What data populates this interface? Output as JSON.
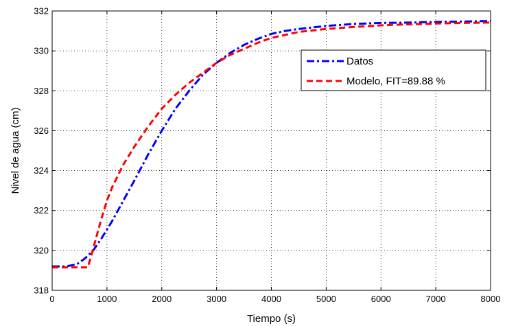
{
  "chart_data": {
    "type": "line",
    "xlabel": "Tiempo (s)",
    "ylabel": "Nivel de agua (cm)",
    "xlim": [
      0,
      8000
    ],
    "ylim": [
      318,
      332
    ],
    "xticks": [
      0,
      1000,
      2000,
      3000,
      4000,
      5000,
      6000,
      7000,
      8000
    ],
    "yticks": [
      318,
      320,
      322,
      324,
      326,
      328,
      330,
      332
    ],
    "grid": true,
    "legend_position": "upper-right",
    "series": [
      {
        "name": "Datos",
        "color": "#0000ff",
        "style": "dash-dot",
        "x": [
          0,
          250,
          450,
          600,
          750,
          900,
          1100,
          1300,
          1500,
          1750,
          2000,
          2250,
          2500,
          2750,
          3000,
          3250,
          3500,
          3750,
          4000,
          4250,
          4500,
          5000,
          5500,
          6000,
          6500,
          7000,
          7500,
          8000
        ],
        "y": [
          319.2,
          319.2,
          319.3,
          319.6,
          320.0,
          320.6,
          321.5,
          322.5,
          323.5,
          324.8,
          326.0,
          327.1,
          328.0,
          328.8,
          329.4,
          329.9,
          330.3,
          330.6,
          330.85,
          331.0,
          331.1,
          331.25,
          331.35,
          331.4,
          331.42,
          331.45,
          331.47,
          331.5
        ]
      },
      {
        "name": "Modelo, FIT=89.88 %",
        "color": "#ff0000",
        "style": "dashed",
        "x": [
          0,
          650,
          700,
          800,
          900,
          1000,
          1100,
          1300,
          1500,
          1750,
          2000,
          2250,
          2500,
          2750,
          3000,
          3250,
          3500,
          3750,
          4000,
          4250,
          4500,
          5000,
          5500,
          6000,
          6500,
          7000,
          7500,
          8000
        ],
        "y": [
          319.15,
          319.15,
          319.6,
          320.6,
          321.6,
          322.5,
          323.2,
          324.3,
          325.2,
          326.2,
          327.1,
          327.8,
          328.4,
          328.9,
          329.4,
          329.8,
          330.1,
          330.4,
          330.65,
          330.8,
          330.95,
          331.1,
          331.2,
          331.28,
          331.33,
          331.37,
          331.4,
          331.42
        ]
      }
    ]
  }
}
